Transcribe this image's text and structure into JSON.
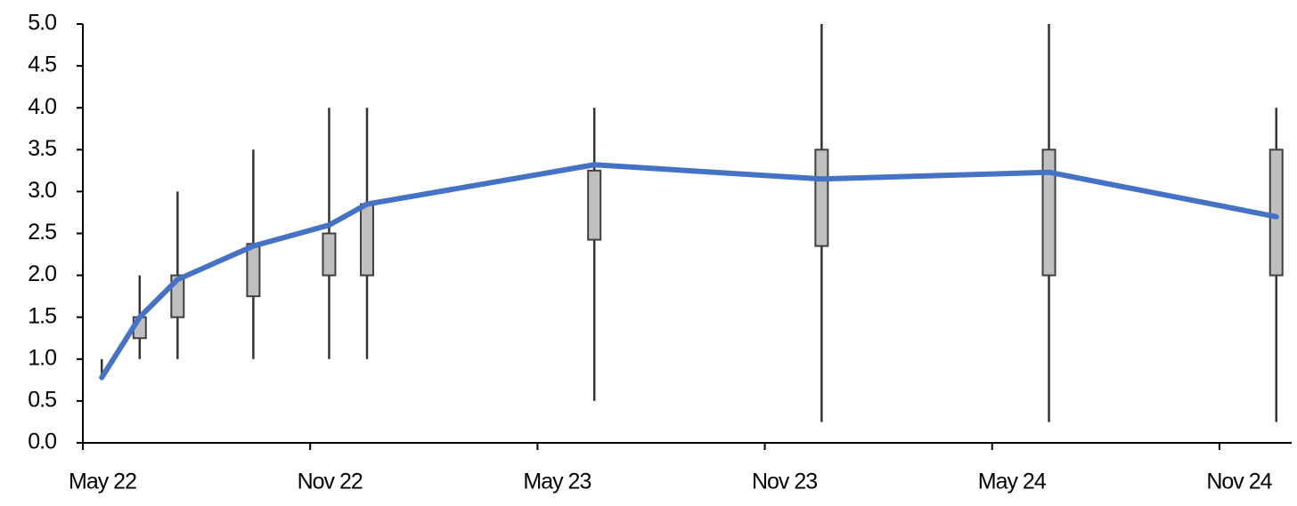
{
  "chart_data": {
    "type": "candlestick",
    "x": [
      "2022-05",
      "2022-06",
      "2022-07",
      "2022-09",
      "2022-11",
      "2022-12",
      "2023-06",
      "2023-12",
      "2024-06",
      "2024-12"
    ],
    "whisker_low": [
      0.75,
      1.0,
      1.0,
      1.0,
      1.0,
      1.0,
      0.5,
      0.25,
      0.25,
      0.25
    ],
    "box_low": [
      1.0,
      1.25,
      1.5,
      1.75,
      2.0,
      2.0,
      2.425,
      2.35,
      2.0,
      2.0
    ],
    "box_high": [
      1.0,
      1.5,
      2.0,
      2.375,
      2.5,
      2.85,
      3.25,
      3.5,
      3.5,
      3.5
    ],
    "whisker_high": [
      1.0,
      2.0,
      3.0,
      3.5,
      4.0,
      4.0,
      4.0,
      5.0,
      5.0,
      4.0
    ],
    "line_values": [
      0.78,
      1.5,
      1.95,
      2.35,
      2.6,
      2.85,
      3.32,
      3.15,
      3.23,
      2.7
    ],
    "line_color": "#4472c4",
    "box_color": "#bfbfbf",
    "xlim": [
      "2022-05",
      "2025-01"
    ],
    "xticks": [
      {
        "value": "2022-05",
        "label": "May 22"
      },
      {
        "value": "2022-11",
        "label": "Nov 22"
      },
      {
        "value": "2023-05",
        "label": "May 23"
      },
      {
        "value": "2023-11",
        "label": "Nov 23"
      },
      {
        "value": "2024-05",
        "label": "May 24"
      },
      {
        "value": "2024-11",
        "label": "Nov 24"
      }
    ],
    "ylim": [
      0,
      5
    ],
    "yticks": [
      {
        "value": 0,
        "label": "0.0"
      },
      0.5,
      {
        "value": 1,
        "label": "1.0"
      },
      1.5,
      {
        "value": 2,
        "label": "2.0"
      },
      2.5,
      {
        "value": 3,
        "label": "3.0"
      },
      3.5,
      {
        "value": 4,
        "label": "4.0"
      },
      4.5,
      {
        "value": 5,
        "label": "5.0"
      }
    ]
  }
}
